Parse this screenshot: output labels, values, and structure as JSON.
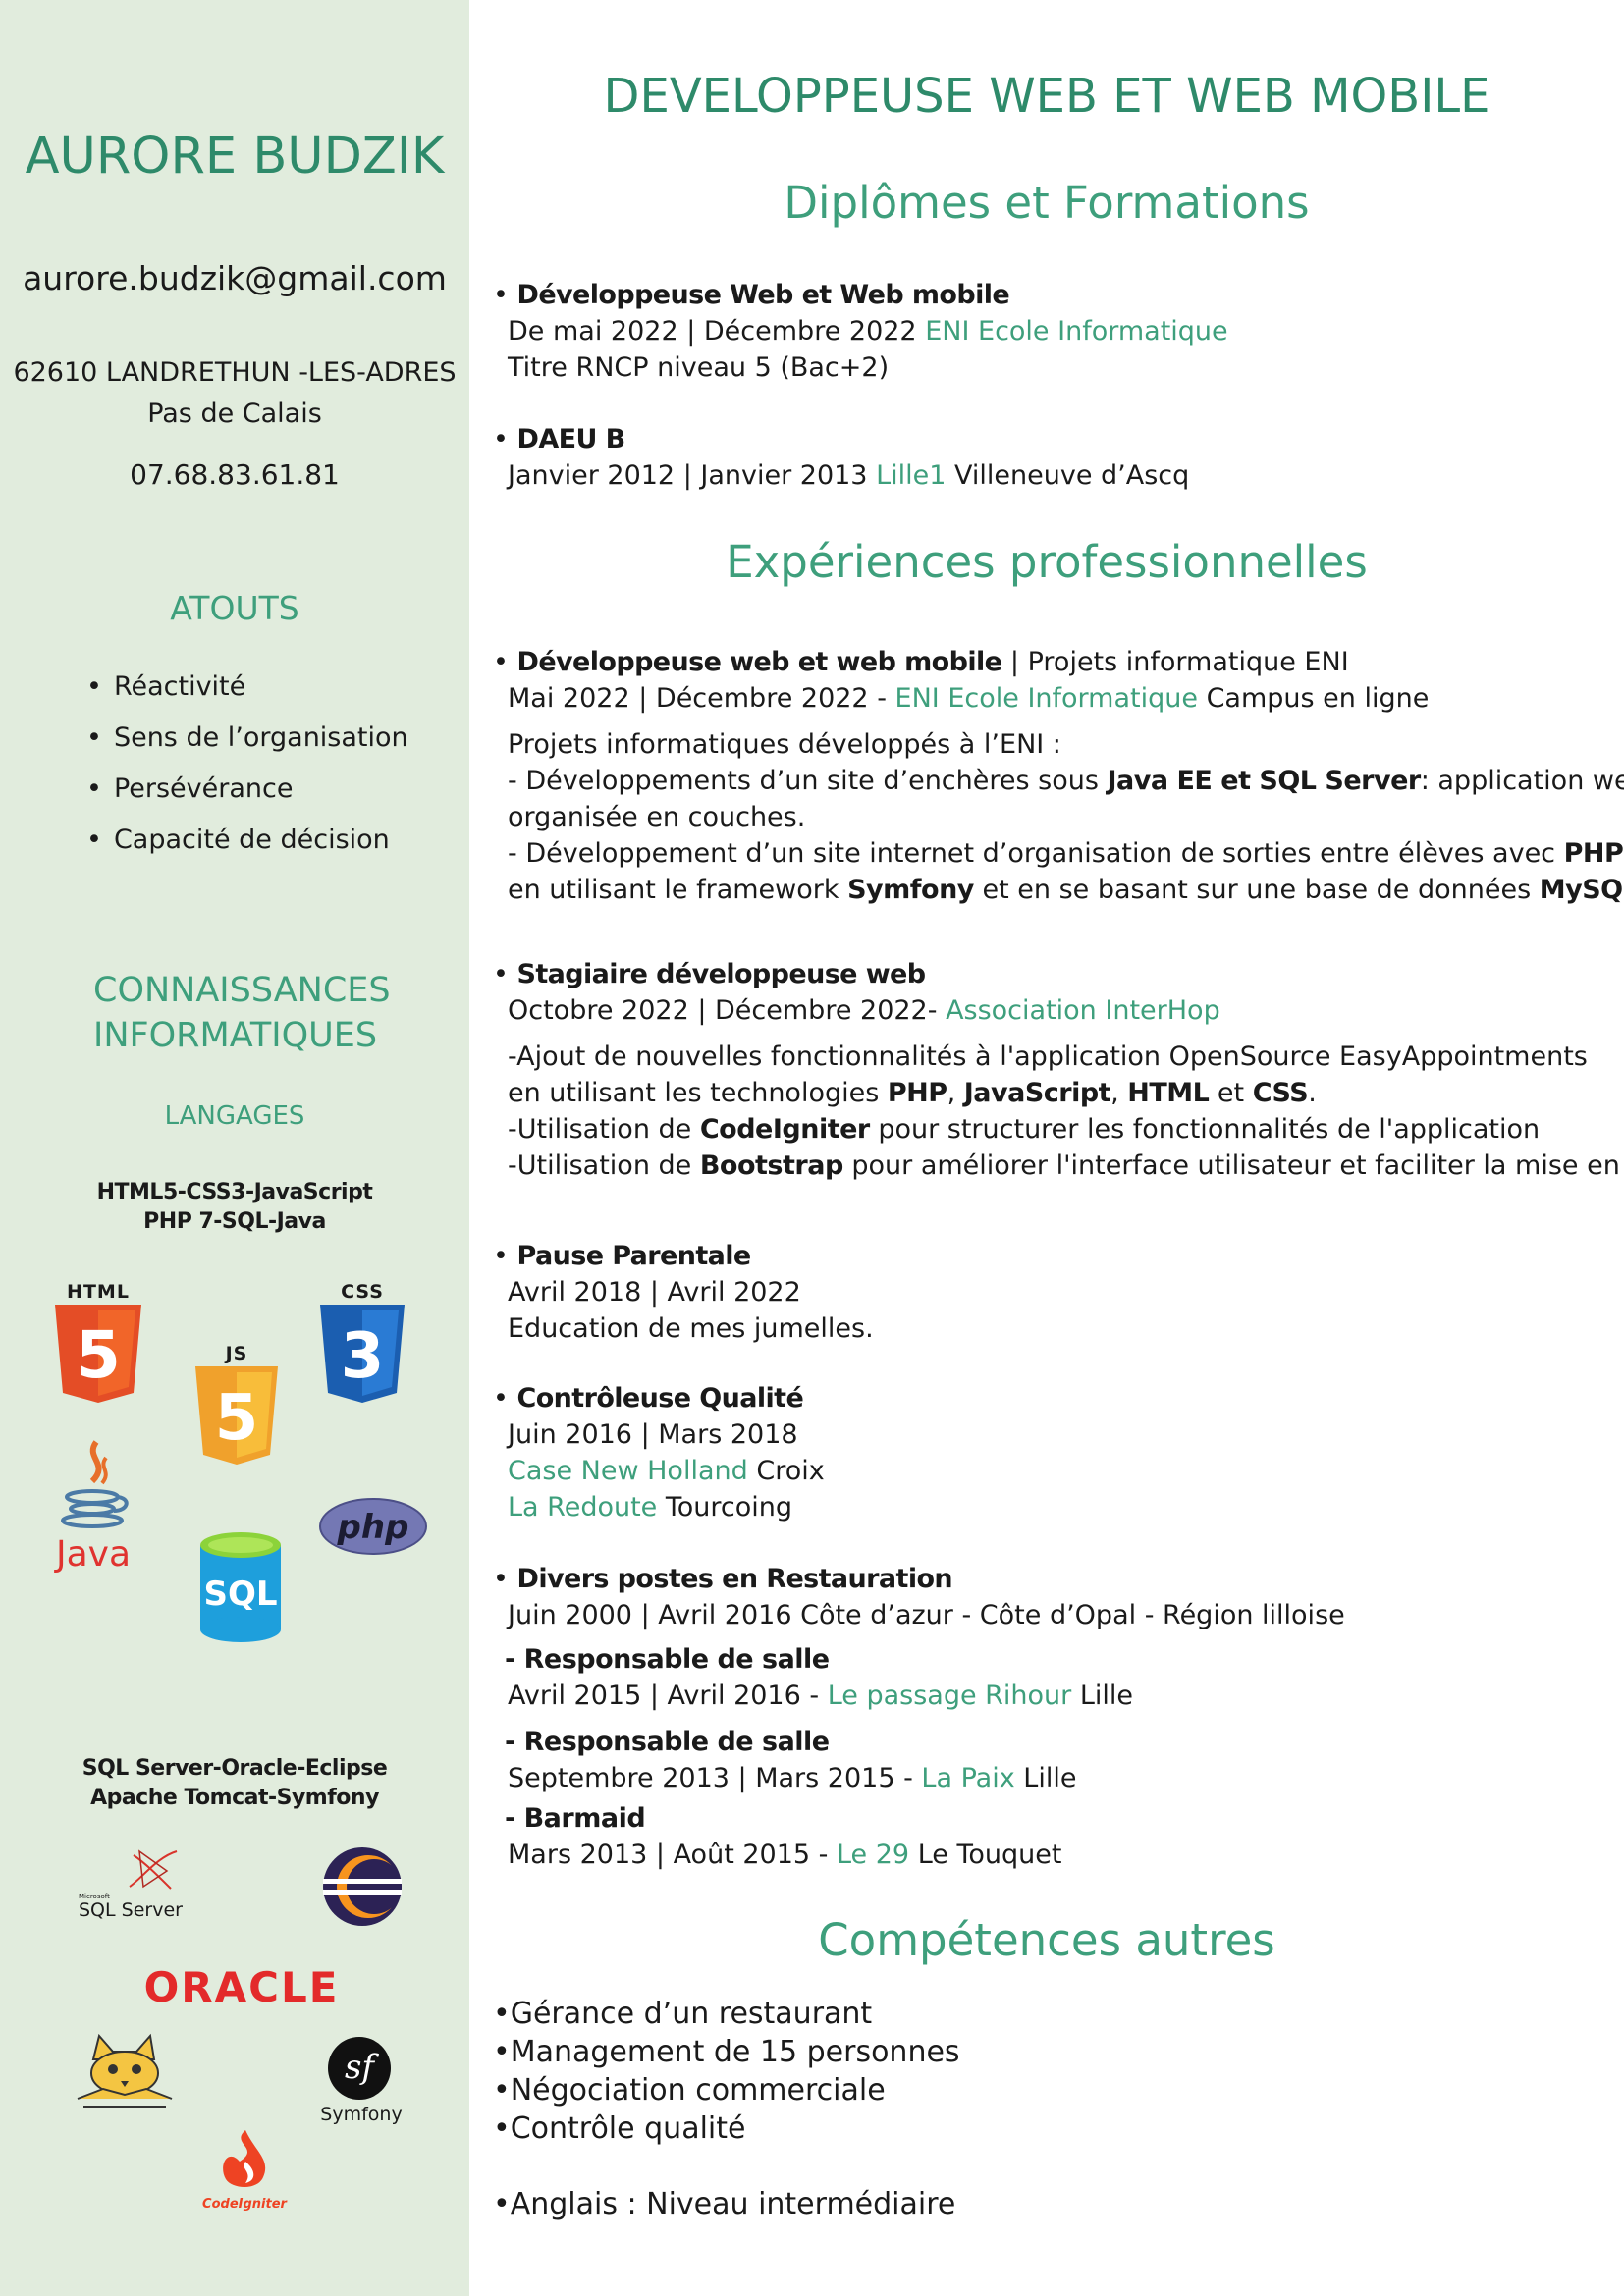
{
  "sidebar": {
    "name": "AURORE BUDZIK",
    "email": "aurore.budzik@gmail.com",
    "address_line1": "62610 LANDRETHUN -LES-ADRES",
    "address_line2": "Pas de Calais",
    "phone": "07.68.83.61.81",
    "atouts_title": "ATOUTS",
    "atouts": [
      "Réactivité",
      "Sens de l’organisation",
      "Persévérance",
      "Capacité de décision"
    ],
    "skills_title_1": "CONNAISSANCES",
    "skills_title_2": "INFORMATIQUES",
    "langages_title": "LANGAGES",
    "langages_line1": "HTML5-CSS3-JavaScript",
    "langages_line2": "PHP 7-SQL-Java",
    "logos": {
      "html": "HTML",
      "html_num": "5",
      "css": "CSS",
      "css_num": "3",
      "js": "JS",
      "js_num": "5",
      "java": "Java",
      "php": "php",
      "sql": "SQL",
      "sqlserver_small": "Microsoft",
      "sqlserver": "SQL Server",
      "oracle": "ORACLE",
      "symfony": "Symfony",
      "symfony_mark": "sf",
      "codeigniter": "CodeIgniter"
    },
    "tools_line1": "SQL Server-Oracle-Eclipse",
    "tools_line2": "Apache Tomcat-Symfony"
  },
  "main": {
    "title": "DEVELOPPEUSE WEB ET WEB MOBILE",
    "diplomes_title": "Diplômes et Formations",
    "diplome1": {
      "head": "Développeuse Web et Web mobile",
      "dates": "De mai 2022 | Décembre 2022",
      "school": "ENI Ecole Informatique",
      "detail": "Titre RNCP niveau 5 (Bac+2)"
    },
    "diplome2": {
      "head": "DAEU B",
      "dates": "Janvier 2012 | Janvier 2013",
      "school": "Lille1",
      "place": "Villeneuve d’Ascq"
    },
    "experiences_title": "Expériences professionnelles",
    "exp1": {
      "head": "Développeuse web et web mobile",
      "head_rest": " | Projets informatique ENI",
      "dates": "Mai 2022 | Décembre 2022 - ",
      "school": "ENI Ecole Informatique",
      "place": " Campus en ligne",
      "intro": "Projets informatiques développés à l’ENI :",
      "l1a": "- Développements d’un site d’enchères sous ",
      "l1b": "Java EE et SQL Server",
      "l1c": ": application web",
      "l2": "organisée en couches.",
      "l3a": "- Développement d’un site internet d’organisation de sorties entre élèves avec ",
      "l3b": "PHP",
      "l3c": ",",
      "l4a": " en utilisant le framework ",
      "l4b": "Symfony",
      "l4c": " et en se basant sur une base de données ",
      "l4d": "MySQL",
      "l4e": "."
    },
    "exp2": {
      "head": "Stagiaire développeuse web",
      "dates": "Octobre 2022 | Décembre 2022- ",
      "org": "Association InterHop",
      "l1": "-Ajout de nouvelles fonctionnalités à l'application OpenSource EasyAppointments",
      "l2a": " en utilisant les technologies ",
      "l2b": "PHP",
      "l2c": ", ",
      "l2d": "JavaScript",
      "l2e": ", ",
      "l2f": "HTML",
      "l2g": " et  ",
      "l2h": "CSS",
      "l2i": ".",
      "l3a": "-Utilisation de ",
      "l3b": "CodeIgniter",
      "l3c": " pour structurer les fonctionnalités  de l'application",
      "l4a": "-Utilisation de ",
      "l4b": "Bootstrap",
      "l4c": " pour améliorer l'interface utilisateur et faciliter la mise en page."
    },
    "exp3": {
      "head": "Pause Parentale",
      "dates": "Avril 2018 | Avril 2022",
      "detail": "Education de mes jumelles."
    },
    "exp4": {
      "head": "Contrôleuse Qualité",
      "dates": "Juin 2016 | Mars 2018",
      "org1": "Case New Holland",
      "place1": "  Croix",
      "org2": "La Redoute",
      "place2": " Tourcoing"
    },
    "exp5": {
      "head": "Divers postes en Restauration",
      "dates": "Juin 2000 | Avril 2016  Côte d’azur - Côte d’Opal - Région lilloise",
      "r1_head": "- Responsable de salle",
      "r1_dates": "Avril 2015 | Avril 2016  - ",
      "r1_org": "Le passage Rihour",
      "r1_place": "  Lille",
      "r2_head": "- Responsable de salle",
      "r2_dates": "Septembre 2013 | Mars 2015 - ",
      "r2_org": "La Paix",
      "r2_place": "  Lille",
      "r3_head": "- Barmaid",
      "r3_dates": "Mars 2013 | Août 2015 - ",
      "r3_org": "Le 29",
      "r3_place": "  Le Touquet"
    },
    "competences_title": "Compétences autres",
    "competences": [
      "Gérance d’un restaurant",
      "Management de 15 personnes",
      "Négociation commerciale",
      "Contrôle qualité"
    ],
    "langue": "Anglais : Niveau intermédiaire"
  }
}
